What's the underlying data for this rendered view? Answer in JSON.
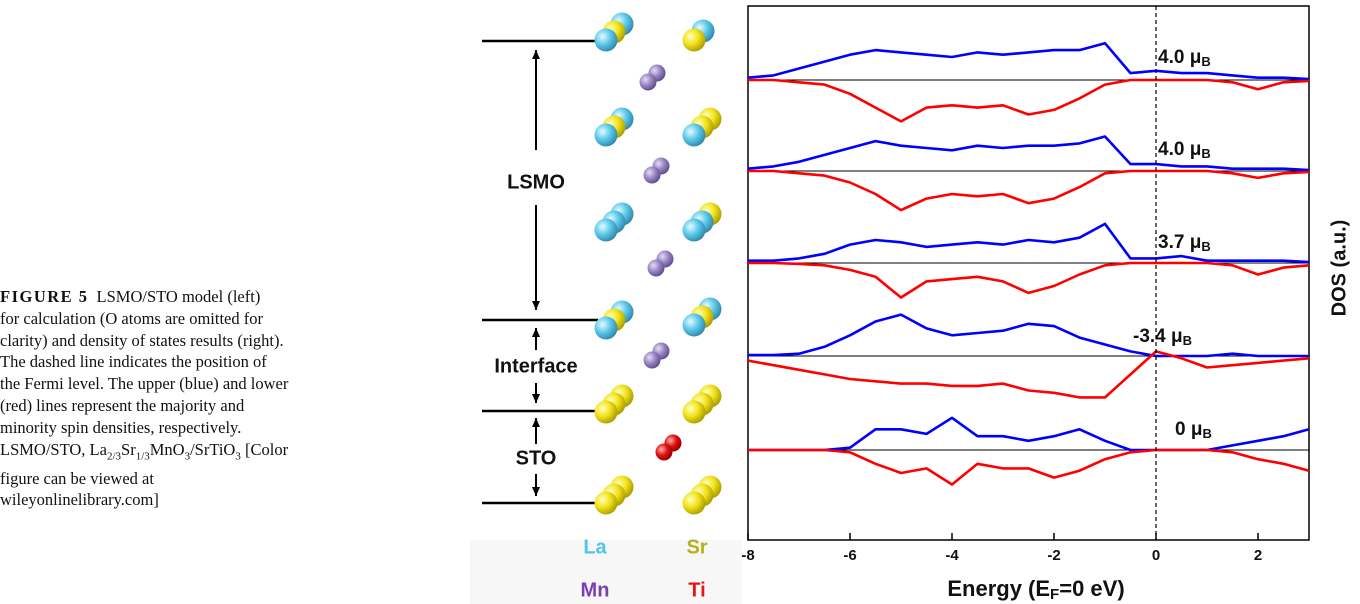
{
  "caption": {
    "label": "FIGURE 5",
    "lines": [
      [
        {
          "text": "LSMO/STO model (left)"
        }
      ],
      [
        {
          "text": "for calculation (O atoms are omitted for"
        }
      ],
      [
        {
          "text": "clarity) and density of states results (right)."
        }
      ],
      [
        {
          "text": "The dashed line indicates the position of"
        }
      ],
      [
        {
          "text": "the Fermi level. The upper (blue) and lower"
        }
      ],
      [
        {
          "text": "(red) lines represent the majority and"
        }
      ],
      [
        {
          "text": "minority spin densities, respectively."
        }
      ],
      [
        {
          "text": "LSMO/STO, La"
        },
        {
          "sub": "2/3"
        },
        {
          "text": "Sr"
        },
        {
          "sub": "1/3"
        },
        {
          "text": "MnO"
        },
        {
          "sub": "3"
        },
        {
          "text": "/SrTiO"
        },
        {
          "sub": "3"
        },
        {
          "text": " [Color"
        }
      ],
      [
        {
          "text": "figure can be viewed at"
        }
      ],
      [
        {
          "text": "wileyonlinelibrary.com]"
        }
      ]
    ]
  },
  "model": {
    "regions": [
      "LSMO",
      "Interface",
      "STO"
    ],
    "legend": [
      {
        "label": "La",
        "color": "#4fc6ea"
      },
      {
        "label": "Sr",
        "color": "#b5b01e"
      },
      {
        "label": "Mn",
        "color": "#7b3fb5"
      },
      {
        "label": "Ti",
        "color": "#e8141a"
      }
    ]
  },
  "chart_data": {
    "type": "line",
    "x": [
      -8,
      -7.5,
      -7,
      -6.5,
      -6,
      -5.5,
      -5,
      -4.5,
      -4,
      -3.5,
      -3,
      -2.5,
      -2,
      -1.5,
      -1,
      -0.5,
      0,
      0.5,
      1,
      1.5,
      2,
      2.5,
      3
    ],
    "xlim": [
      -8,
      3
    ],
    "xticks": [
      -8,
      -6,
      -4,
      -2,
      0,
      2
    ],
    "xlabel": {
      "before": "Energy (E",
      "sub": "F",
      "after": "=0 eV)"
    },
    "ylabel": "DOS (a.u.)",
    "panels": [
      {
        "moment": {
          "text": "4.0 μ",
          "sub": "B"
        },
        "ylim": [
          -1,
          1
        ],
        "series": [
          {
            "color": "#0000ff",
            "values": [
              0.05,
              0.1,
              0.25,
              0.4,
              0.55,
              0.65,
              0.6,
              0.55,
              0.5,
              0.6,
              0.55,
              0.6,
              0.65,
              0.65,
              0.8,
              0.15,
              0.2,
              0.15,
              0.15,
              0.1,
              0.05,
              0.05,
              0.02
            ]
          },
          {
            "color": "#ff0000",
            "values": [
              0,
              0,
              -0.05,
              -0.1,
              -0.3,
              -0.6,
              -0.9,
              -0.6,
              -0.55,
              -0.6,
              -0.55,
              -0.75,
              -0.65,
              -0.4,
              -0.1,
              0,
              0,
              0,
              0,
              -0.05,
              -0.2,
              -0.05,
              -0.02
            ]
          }
        ]
      },
      {
        "moment": {
          "text": "4.0 μ",
          "sub": "B"
        },
        "ylim": [
          -1,
          1
        ],
        "series": [
          {
            "color": "#0000ff",
            "values": [
              0.05,
              0.1,
              0.2,
              0.35,
              0.5,
              0.65,
              0.55,
              0.5,
              0.45,
              0.55,
              0.5,
              0.55,
              0.55,
              0.6,
              0.75,
              0.15,
              0.15,
              0.1,
              0.1,
              0.05,
              0.05,
              0.05,
              0.02
            ]
          },
          {
            "color": "#ff0000",
            "values": [
              0,
              0,
              -0.05,
              -0.1,
              -0.25,
              -0.5,
              -0.85,
              -0.6,
              -0.5,
              -0.55,
              -0.5,
              -0.7,
              -0.6,
              -0.35,
              -0.05,
              0,
              0,
              0,
              0,
              -0.05,
              -0.15,
              -0.05,
              -0.02
            ]
          }
        ]
      },
      {
        "moment": {
          "text": "3.7 μ",
          "sub": "B"
        },
        "ylim": [
          -1,
          1
        ],
        "series": [
          {
            "color": "#0000ff",
            "values": [
              0.05,
              0.05,
              0.1,
              0.2,
              0.4,
              0.5,
              0.45,
              0.35,
              0.4,
              0.45,
              0.4,
              0.5,
              0.45,
              0.55,
              0.85,
              0.1,
              0.1,
              0.15,
              0.05,
              0.05,
              0.05,
              0.05,
              0.02
            ]
          },
          {
            "color": "#ff0000",
            "values": [
              0,
              0,
              -0.02,
              -0.05,
              -0.15,
              -0.3,
              -0.75,
              -0.4,
              -0.35,
              -0.3,
              -0.4,
              -0.65,
              -0.5,
              -0.25,
              -0.05,
              0,
              0,
              0,
              0,
              -0.05,
              -0.25,
              -0.1,
              -0.05
            ]
          }
        ]
      },
      {
        "moment": {
          "text": "-3.4 μ",
          "sub": "B"
        },
        "ylim": [
          -1,
          1
        ],
        "series": [
          {
            "color": "#0000ff",
            "values": [
              0.02,
              0.02,
              0.05,
              0.2,
              0.45,
              0.75,
              0.9,
              0.6,
              0.45,
              0.5,
              0.55,
              0.7,
              0.65,
              0.4,
              0.25,
              0.1,
              0,
              0,
              0,
              0.05,
              0,
              0,
              0
            ]
          },
          {
            "color": "#ff0000",
            "values": [
              -0.1,
              -0.2,
              -0.3,
              -0.4,
              -0.5,
              -0.55,
              -0.6,
              -0.6,
              -0.65,
              -0.65,
              -0.6,
              -0.75,
              -0.8,
              -0.9,
              -0.9,
              -0.4,
              0.1,
              -0.05,
              -0.25,
              -0.2,
              -0.15,
              -0.1,
              -0.05
            ]
          }
        ]
      },
      {
        "moment": {
          "text": "0 μ",
          "sub": "B"
        },
        "ylim": [
          -1,
          1
        ],
        "series": [
          {
            "color": "#0000ff",
            "values": [
              0,
              0,
              0,
              0,
              0.05,
              0.45,
              0.45,
              0.35,
              0.7,
              0.3,
              0.3,
              0.2,
              0.3,
              0.45,
              0.2,
              0,
              0,
              0,
              0,
              0.1,
              0.2,
              0.3,
              0.45
            ]
          },
          {
            "color": "#ff0000",
            "values": [
              0,
              0,
              0,
              0,
              -0.05,
              -0.3,
              -0.5,
              -0.4,
              -0.75,
              -0.3,
              -0.4,
              -0.4,
              -0.6,
              -0.45,
              -0.2,
              -0.05,
              0,
              0,
              0,
              -0.05,
              -0.2,
              -0.3,
              -0.45
            ]
          }
        ]
      }
    ]
  }
}
